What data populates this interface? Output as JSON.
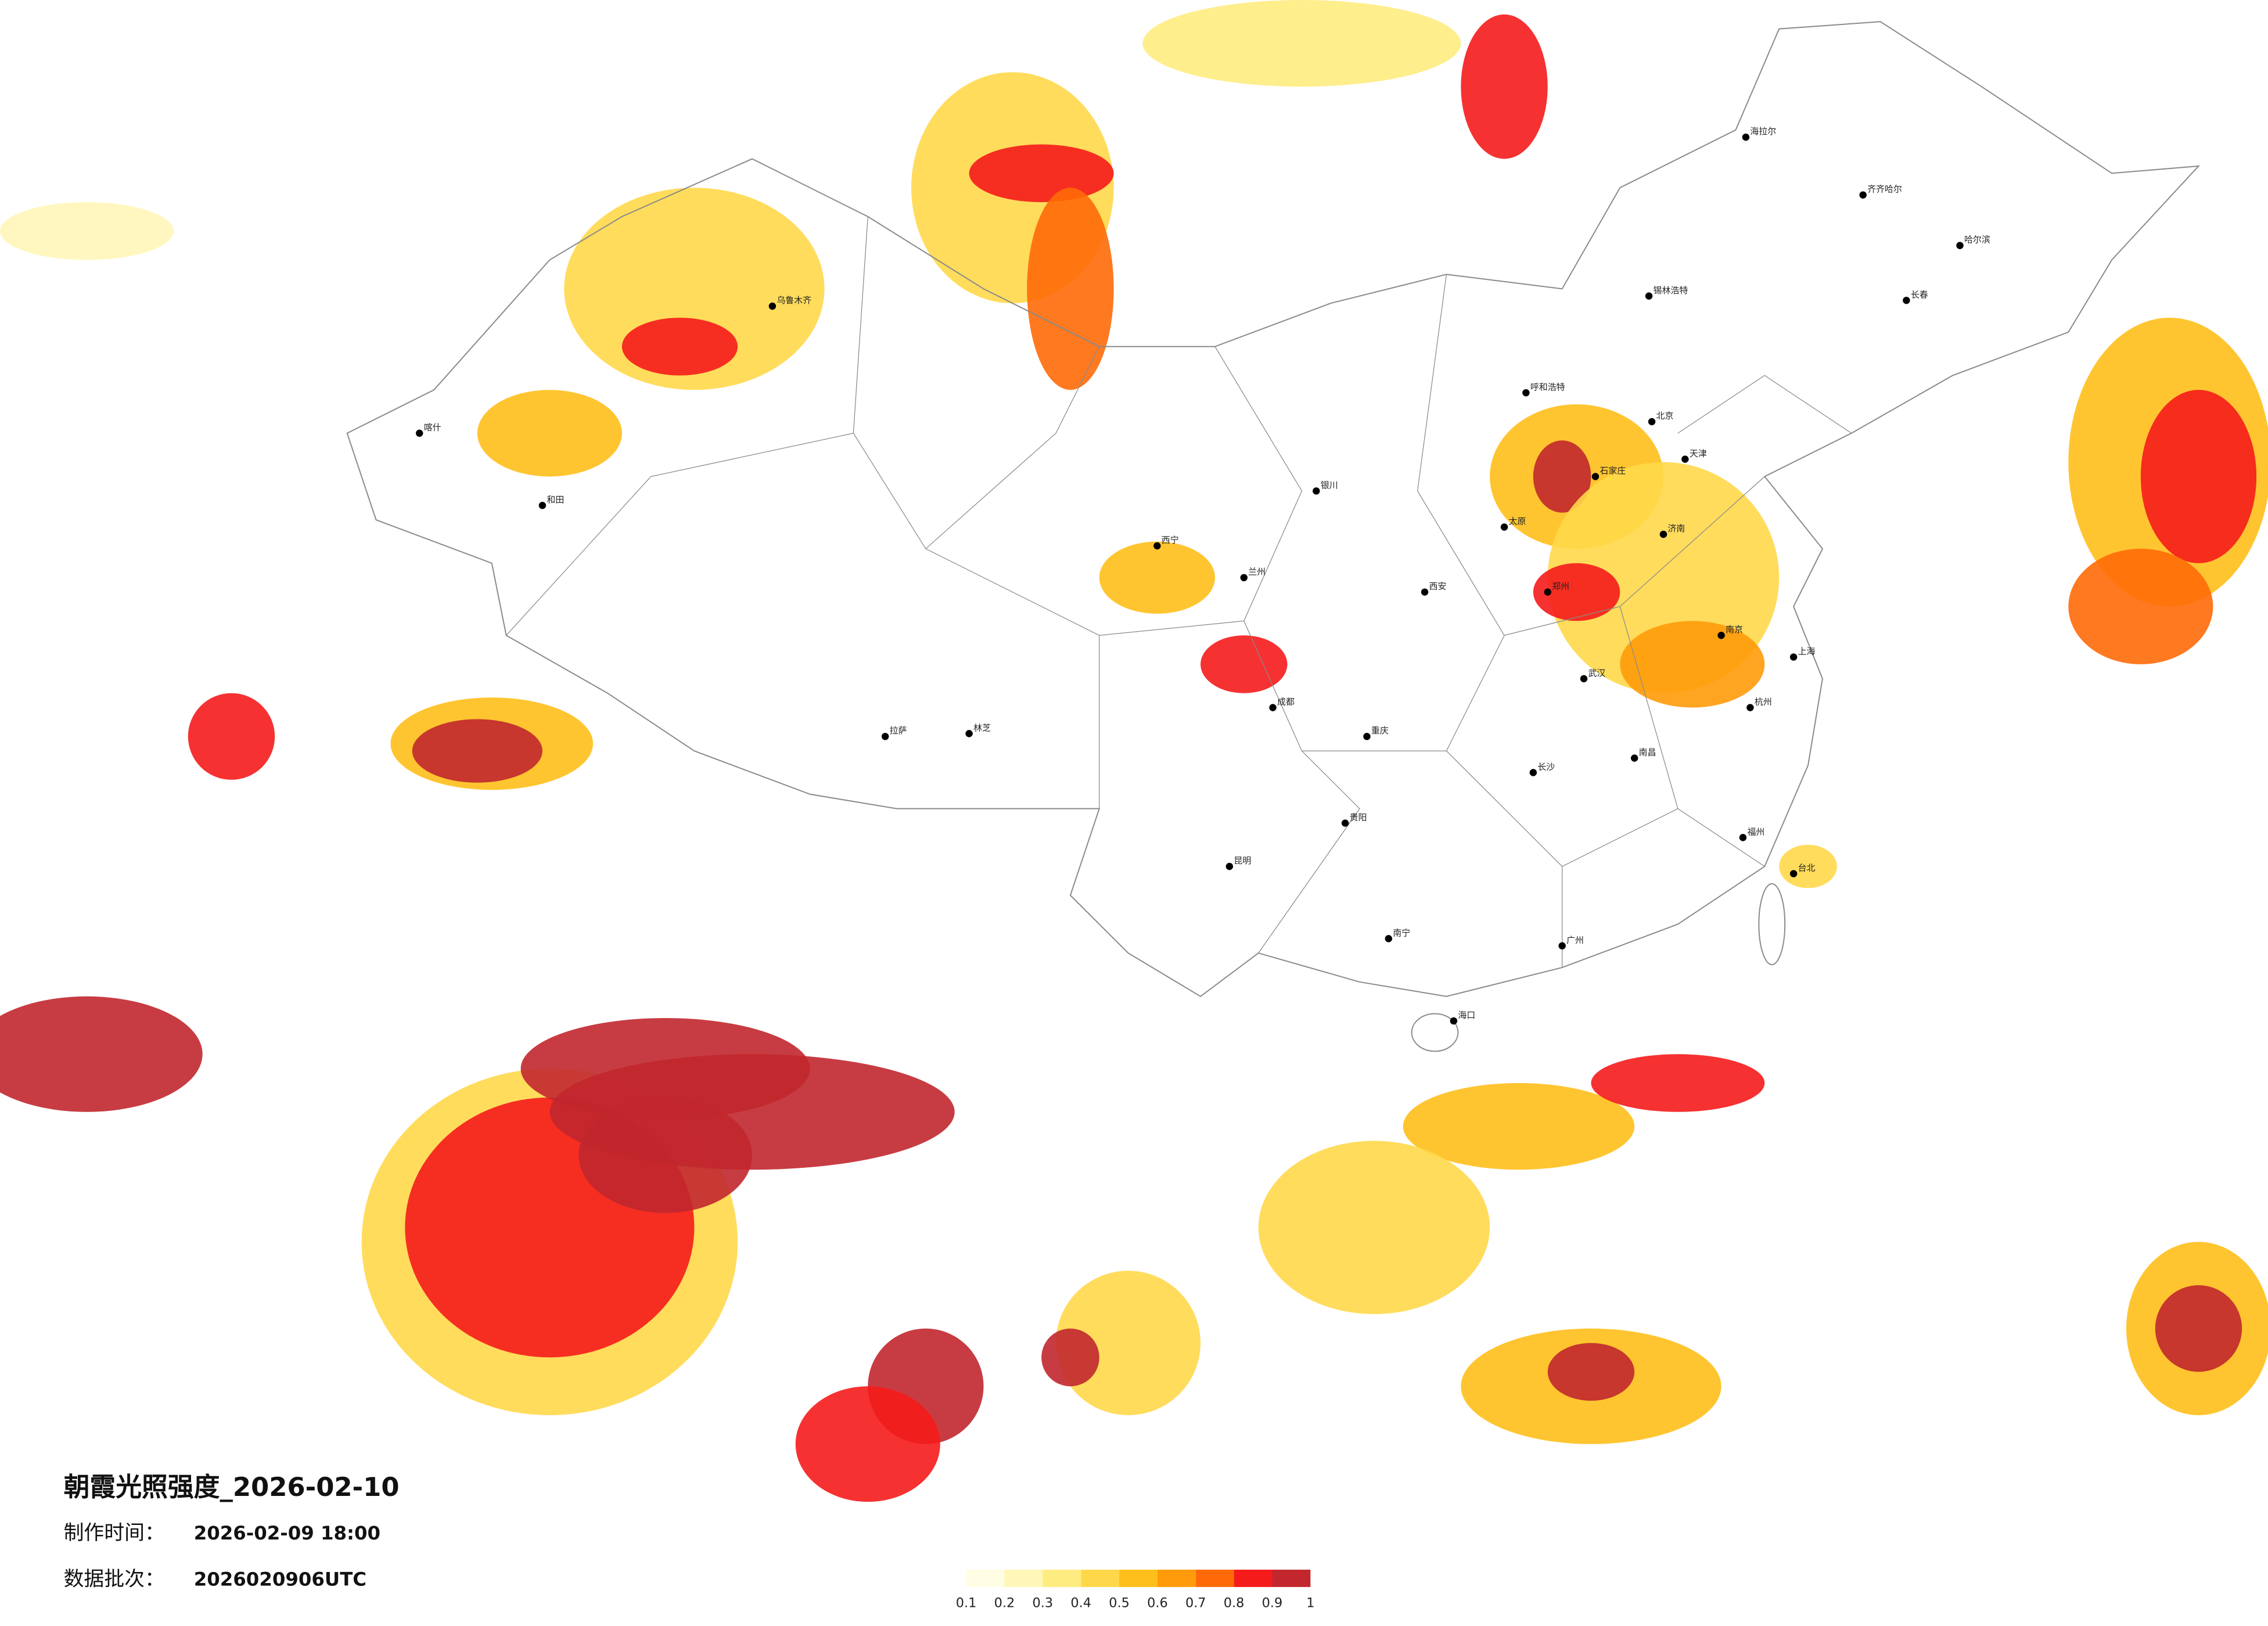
{
  "title": "朝霞光照强度_2026-02-10",
  "made_label": "制作时间：",
  "made_time": "2026-02-09 18:00",
  "batch_label": "数据批次：",
  "batch": "2026020906UTC",
  "legend": {
    "ticks": [
      0.1,
      0.2,
      0.3,
      0.4,
      0.5,
      0.6,
      0.7,
      0.8,
      0.9,
      1
    ],
    "colors": [
      "#fffde3",
      "#fff6b8",
      "#ffec80",
      "#ffd84a",
      "#ffbf1a",
      "#ff9b0a",
      "#ff6a08",
      "#f51b1b",
      "#c1272d"
    ]
  },
  "cities": [
    "海拉尔",
    "齐齐哈尔",
    "哈尔滨",
    "长春",
    "锡林浩特",
    "呼和浩特",
    "北京",
    "天津",
    "石家庄",
    "太原",
    "济南",
    "郑州",
    "西安",
    "兰州",
    "西宁",
    "银川",
    "乌鲁木齐",
    "喀什",
    "和田",
    "拉萨",
    "林芝",
    "成都",
    "重庆",
    "武汉",
    "南京",
    "上海",
    "杭州",
    "长沙",
    "南昌",
    "福州",
    "广州",
    "南宁",
    "昆明",
    "贵阳",
    "海口",
    "台北"
  ]
}
